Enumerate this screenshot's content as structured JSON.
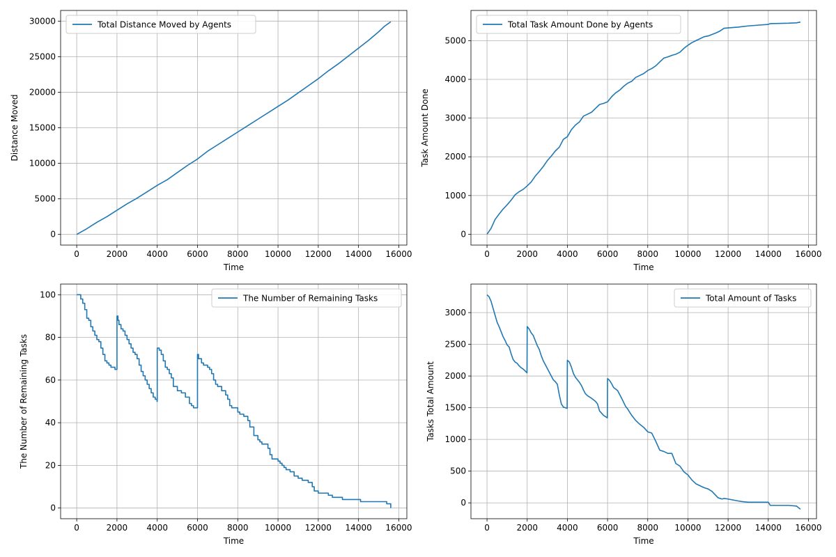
{
  "chart_data": [
    {
      "type": "line",
      "xlabel": "Time",
      "ylabel": "Distance Moved",
      "xlim": [
        -800,
        16400
      ],
      "ylim": [
        -1500,
        31500
      ],
      "xticks": [
        0,
        2000,
        4000,
        6000,
        8000,
        10000,
        12000,
        14000,
        16000
      ],
      "yticks": [
        0,
        5000,
        10000,
        15000,
        20000,
        25000,
        30000
      ],
      "grid": true,
      "legend": "top-left",
      "color": "#1f77b4",
      "series": [
        {
          "name": "Total Distance Moved by Agents",
          "x": [
            0,
            500,
            1000,
            1500,
            2000,
            2500,
            3000,
            3500,
            4000,
            4500,
            5000,
            5500,
            6000,
            6500,
            7000,
            7500,
            8000,
            8500,
            9000,
            9500,
            10000,
            10500,
            11000,
            11500,
            12000,
            12500,
            13000,
            13500,
            14000,
            14500,
            15000,
            15300,
            15600
          ],
          "y": [
            0,
            800,
            1700,
            2500,
            3400,
            4300,
            5100,
            6000,
            6900,
            7700,
            8700,
            9700,
            10600,
            11700,
            12600,
            13500,
            14400,
            15300,
            16200,
            17100,
            18000,
            18900,
            19900,
            20900,
            21900,
            23000,
            24000,
            25100,
            26200,
            27300,
            28500,
            29300,
            29900
          ]
        }
      ]
    },
    {
      "type": "line",
      "xlabel": "Time",
      "ylabel": "Task Amount Done",
      "xlim": [
        -800,
        16400
      ],
      "ylim": [
        -280,
        5780
      ],
      "xticks": [
        0,
        2000,
        4000,
        6000,
        8000,
        10000,
        12000,
        14000,
        16000
      ],
      "yticks": [
        0,
        1000,
        2000,
        3000,
        4000,
        5000
      ],
      "grid": true,
      "legend": "top-left",
      "color": "#1f77b4",
      "series": [
        {
          "name": "Total Task Amount Done by Agents",
          "x": [
            0,
            200,
            400,
            600,
            800,
            1000,
            1200,
            1400,
            1600,
            1800,
            2000,
            2200,
            2400,
            2600,
            2800,
            3000,
            3200,
            3400,
            3600,
            3800,
            4000,
            4200,
            4400,
            4600,
            4800,
            5000,
            5200,
            5400,
            5600,
            5800,
            6000,
            6200,
            6400,
            6600,
            6800,
            7000,
            7200,
            7400,
            7600,
            7800,
            8000,
            8200,
            8400,
            8600,
            8800,
            9000,
            9200,
            9400,
            9600,
            9800,
            10000,
            10200,
            10400,
            10600,
            10800,
            11000,
            11200,
            11400,
            11600,
            11800,
            12000,
            12500,
            13000,
            13500,
            14000,
            14100,
            15000,
            15400,
            15600
          ],
          "y": [
            0,
            150,
            380,
            520,
            650,
            760,
            880,
            1020,
            1100,
            1160,
            1250,
            1350,
            1500,
            1620,
            1750,
            1900,
            2020,
            2150,
            2250,
            2450,
            2520,
            2700,
            2820,
            2900,
            3050,
            3100,
            3150,
            3250,
            3350,
            3380,
            3420,
            3550,
            3650,
            3720,
            3820,
            3900,
            3950,
            4050,
            4100,
            4150,
            4230,
            4280,
            4350,
            4450,
            4550,
            4580,
            4620,
            4650,
            4700,
            4800,
            4880,
            4950,
            5000,
            5050,
            5100,
            5120,
            5160,
            5200,
            5250,
            5320,
            5330,
            5350,
            5380,
            5400,
            5420,
            5440,
            5450,
            5460,
            5480
          ]
        }
      ]
    },
    {
      "type": "line",
      "step": true,
      "xlabel": "Time",
      "ylabel": "The Number of Remaining Tasks",
      "xlim": [
        -800,
        16400
      ],
      "ylim": [
        -5,
        105
      ],
      "xticks": [
        0,
        2000,
        4000,
        6000,
        8000,
        10000,
        12000,
        14000,
        16000
      ],
      "yticks": [
        0,
        20,
        40,
        60,
        80,
        100
      ],
      "grid": true,
      "legend": "top-right",
      "color": "#1f77b4",
      "series": [
        {
          "name": "The Number of Remaining Tasks",
          "x": [
            0,
            200,
            300,
            400,
            500,
            600,
            700,
            800,
            900,
            1000,
            1100,
            1200,
            1300,
            1400,
            1500,
            1600,
            1700,
            1800,
            1900,
            1990,
            2000,
            2050,
            2100,
            2200,
            2300,
            2400,
            2500,
            2600,
            2700,
            2800,
            2900,
            3000,
            3100,
            3200,
            3300,
            3400,
            3500,
            3600,
            3700,
            3800,
            3900,
            3990,
            4000,
            4100,
            4200,
            4300,
            4400,
            4500,
            4600,
            4700,
            4800,
            5000,
            5200,
            5400,
            5600,
            5700,
            5800,
            5990,
            6000,
            6050,
            6200,
            6300,
            6500,
            6600,
            6700,
            6800,
            6900,
            7000,
            7200,
            7400,
            7500,
            7600,
            7700,
            8000,
            8100,
            8300,
            8500,
            8600,
            8800,
            9000,
            9100,
            9200,
            9500,
            9600,
            9700,
            10000,
            10100,
            10200,
            10300,
            10400,
            10600,
            10800,
            11000,
            11200,
            11500,
            11700,
            11800,
            12000,
            12500,
            12700,
            13000,
            13200,
            14000,
            14100,
            15000,
            15400,
            15600
          ],
          "y": [
            100,
            98,
            96,
            93,
            89,
            88,
            85,
            83,
            81,
            79,
            78,
            75,
            72,
            69,
            68,
            67,
            66,
            66,
            65,
            65,
            90,
            88,
            86,
            84,
            83,
            81,
            79,
            77,
            75,
            73,
            72,
            70,
            67,
            64,
            62,
            60,
            58,
            56,
            54,
            52,
            51,
            50,
            75,
            74,
            72,
            69,
            66,
            65,
            63,
            61,
            57,
            55,
            54,
            52,
            49,
            48,
            47,
            47,
            72,
            70,
            68,
            67,
            66,
            65,
            63,
            60,
            58,
            57,
            55,
            53,
            51,
            48,
            47,
            45,
            44,
            43,
            41,
            38,
            34,
            32,
            31,
            30,
            28,
            25,
            23,
            22,
            21,
            20,
            19,
            18,
            17,
            15,
            14,
            13,
            12,
            10,
            8,
            7,
            6,
            5,
            5,
            4,
            4,
            3,
            3,
            2,
            0
          ]
        }
      ]
    },
    {
      "type": "line",
      "xlabel": "Time",
      "ylabel": "Tasks Total Amount",
      "xlim": [
        -800,
        16400
      ],
      "ylim": [
        -250,
        3450
      ],
      "xticks": [
        0,
        2000,
        4000,
        6000,
        8000,
        10000,
        12000,
        14000,
        16000
      ],
      "yticks": [
        0,
        500,
        1000,
        1500,
        2000,
        2500,
        3000
      ],
      "grid": true,
      "legend": "top-right",
      "color": "#1f77b4",
      "series": [
        {
          "name": "Total Amount of Tasks",
          "x": [
            0,
            100,
            200,
            300,
            400,
            500,
            600,
            700,
            800,
            900,
            1000,
            1100,
            1200,
            1300,
            1400,
            1500,
            1600,
            1700,
            1800,
            1900,
            1990,
            2000,
            2100,
            2200,
            2300,
            2400,
            2500,
            2600,
            2700,
            2800,
            2900,
            3000,
            3100,
            3200,
            3300,
            3400,
            3500,
            3600,
            3700,
            3800,
            3900,
            3990,
            4000,
            4100,
            4200,
            4300,
            4400,
            4500,
            4600,
            4700,
            4800,
            4900,
            5000,
            5200,
            5400,
            5500,
            5600,
            5800,
            5990,
            6000,
            6100,
            6200,
            6300,
            6500,
            6700,
            6900,
            7000,
            7200,
            7400,
            7600,
            7800,
            8000,
            8200,
            8400,
            8600,
            8800,
            9000,
            9200,
            9400,
            9600,
            9800,
            10000,
            10200,
            10400,
            10600,
            10800,
            11000,
            11200,
            11500,
            11700,
            11800,
            12000,
            12500,
            12700,
            13000,
            13200,
            14000,
            14100,
            15000,
            15400,
            15600
          ],
          "y": [
            3280,
            3250,
            3180,
            3070,
            2960,
            2850,
            2780,
            2700,
            2620,
            2560,
            2490,
            2460,
            2350,
            2260,
            2220,
            2200,
            2160,
            2130,
            2110,
            2080,
            2050,
            2780,
            2740,
            2680,
            2640,
            2560,
            2480,
            2420,
            2320,
            2240,
            2180,
            2120,
            2060,
            2000,
            1940,
            1910,
            1870,
            1700,
            1560,
            1510,
            1500,
            1490,
            2250,
            2220,
            2140,
            2040,
            1980,
            1940,
            1900,
            1850,
            1780,
            1720,
            1690,
            1650,
            1600,
            1560,
            1450,
            1380,
            1340,
            1960,
            1930,
            1880,
            1820,
            1770,
            1650,
            1520,
            1480,
            1380,
            1300,
            1240,
            1190,
            1120,
            1100,
            970,
            830,
            810,
            780,
            780,
            620,
            580,
            490,
            440,
            360,
            300,
            270,
            240,
            220,
            180,
            80,
            60,
            70,
            60,
            30,
            20,
            10,
            10,
            10,
            -40,
            -40,
            -50,
            -100
          ]
        }
      ]
    }
  ]
}
